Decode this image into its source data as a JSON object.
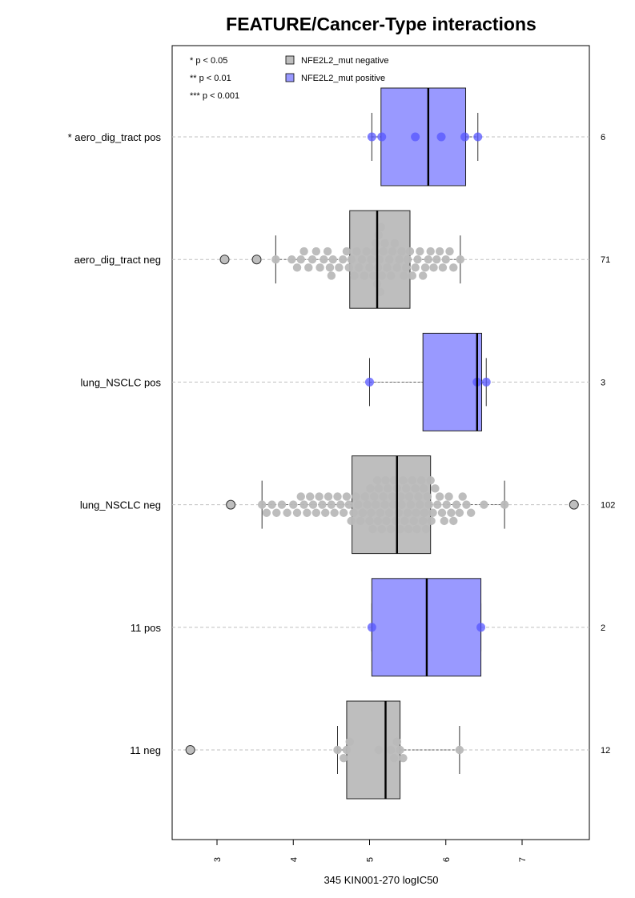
{
  "chart_data": {
    "type": "boxplot",
    "title": "FEATURE/Cancer-Type interactions",
    "xlabel": "345 KIN001-270 logIC50",
    "xlim": [
      2.45,
      7.9
    ],
    "xticks": [
      "3",
      "4",
      "5",
      "6",
      "7"
    ],
    "xtick_values": [
      3,
      4,
      5,
      6,
      7
    ],
    "significance_legend": [
      "* p < 0.05",
      "** p < 0.01",
      "*** p < 0.001"
    ],
    "legend": [
      {
        "label": "NFE2L2_mut negative",
        "color": "#bebebe"
      },
      {
        "label": "NFE2L2_mut positive",
        "color": "#9999ff"
      }
    ],
    "groups": [
      {
        "label": "* aero_dig_tract pos",
        "count": "6",
        "kind": "positive",
        "box": {
          "q1": 5.15,
          "median": 5.77,
          "q3": 6.26,
          "whisker_low": 5.03,
          "whisker_high": 6.42
        },
        "points": [
          5.03,
          5.16,
          5.6,
          5.94,
          6.25,
          6.42
        ],
        "outliers": []
      },
      {
        "label": "aero_dig_tract neg",
        "count": "71",
        "kind": "negative",
        "box": {
          "q1": 4.74,
          "median": 5.1,
          "q3": 5.53,
          "whisker_low": 3.77,
          "whisker_high": 6.19
        },
        "points": [
          3.77,
          3.98,
          4.05,
          4.1,
          4.14,
          4.2,
          4.25,
          4.3,
          4.35,
          4.4,
          4.45,
          4.48,
          4.5,
          4.52,
          4.6,
          4.65,
          4.7,
          4.73,
          4.76,
          4.8,
          4.83,
          4.86,
          4.9,
          4.93,
          4.96,
          5.0,
          5.02,
          5.05,
          5.07,
          5.1,
          5.12,
          5.14,
          5.16,
          5.18,
          5.2,
          5.23,
          5.26,
          5.28,
          5.3,
          5.33,
          5.36,
          5.39,
          5.42,
          5.45,
          5.48,
          5.5,
          5.53,
          5.56,
          5.6,
          5.63,
          5.66,
          5.7,
          5.73,
          5.77,
          5.8,
          5.84,
          5.88,
          5.92,
          5.96,
          6.0,
          6.05,
          6.1,
          6.19,
          5.08,
          5.11,
          5.13,
          5.15
        ],
        "outliers": [
          3.1,
          3.52
        ]
      },
      {
        "label": "lung_NSCLC pos",
        "count": "3",
        "kind": "positive",
        "box": {
          "q1": 5.7,
          "median": 6.41,
          "q3": 6.47,
          "whisker_low": 5.0,
          "whisker_high": 6.53
        },
        "points": [
          5.0,
          6.41,
          6.53
        ],
        "outliers": []
      },
      {
        "label": "lung_NSCLC neg",
        "count": "102",
        "kind": "negative",
        "box": {
          "q1": 4.77,
          "median": 5.36,
          "q3": 5.8,
          "whisker_low": 3.59,
          "whisker_high": 6.77
        },
        "points": [
          3.59,
          3.65,
          3.72,
          3.78,
          3.85,
          3.92,
          4.0,
          4.05,
          4.1,
          4.14,
          4.18,
          4.22,
          4.26,
          4.3,
          4.34,
          4.38,
          4.42,
          4.46,
          4.5,
          4.54,
          4.58,
          4.62,
          4.66,
          4.7,
          4.73,
          4.76,
          4.79,
          4.82,
          4.85,
          4.88,
          4.91,
          4.94,
          4.97,
          5.0,
          5.02,
          5.04,
          5.06,
          5.08,
          5.1,
          5.12,
          5.14,
          5.16,
          5.18,
          5.2,
          5.22,
          5.24,
          5.26,
          5.28,
          5.3,
          5.32,
          5.34,
          5.36,
          5.38,
          5.4,
          5.42,
          5.44,
          5.46,
          5.48,
          5.5,
          5.52,
          5.54,
          5.56,
          5.58,
          5.6,
          5.62,
          5.64,
          5.66,
          5.68,
          5.7,
          5.72,
          5.74,
          5.76,
          5.78,
          5.8,
          5.83,
          5.86,
          5.89,
          5.92,
          5.95,
          5.98,
          6.01,
          6.04,
          6.07,
          6.1,
          6.14,
          6.18,
          6.22,
          6.27,
          6.33,
          6.5,
          6.77,
          5.01,
          5.11,
          5.21,
          5.31,
          5.41,
          5.51,
          5.61,
          5.71,
          5.81
        ],
        "outliers": [
          3.18,
          7.68
        ]
      },
      {
        "label": "11 pos",
        "count": "2",
        "kind": "positive",
        "box": {
          "q1": 5.03,
          "median": 5.75,
          "q3": 6.46,
          "whisker_low": 5.03,
          "whisker_high": 6.46
        },
        "points": [
          5.03,
          6.46
        ],
        "outliers": []
      },
      {
        "label": "11 neg",
        "count": "12",
        "kind": "negative",
        "box": {
          "q1": 4.7,
          "median": 5.21,
          "q3": 5.4,
          "whisker_low": 4.58,
          "whisker_high": 6.18
        },
        "points": [
          4.58,
          4.66,
          4.7,
          4.74,
          5.12,
          5.28,
          5.32,
          5.36,
          5.4,
          5.44,
          6.18
        ],
        "outliers": [
          2.65
        ]
      }
    ]
  }
}
